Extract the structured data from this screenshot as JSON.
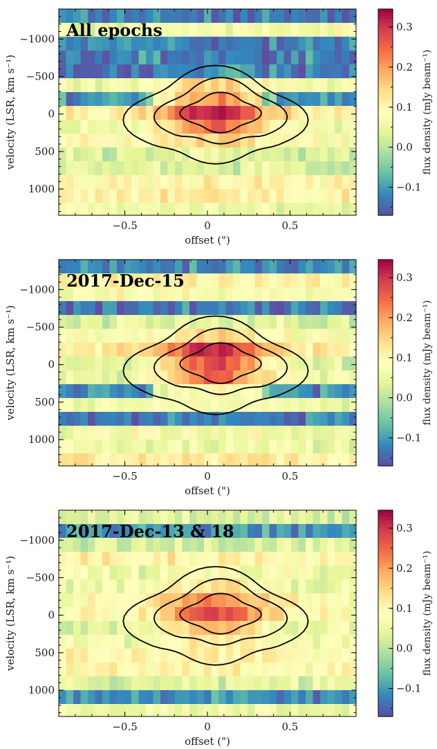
{
  "chart_data": [
    {
      "type": "heatmap",
      "annotation": "All epochs",
      "xlabel": "offset (\")",
      "ylabel": "velocity (LSR, km s⁻¹)",
      "colorbar_label": "flux density (mJy beam⁻¹)",
      "xlim": [
        -0.9,
        0.9
      ],
      "ylim": [
        1350,
        -1400
      ],
      "xticks": [
        {
          "v": -0.5,
          "t": "−0.5"
        },
        {
          "v": 0,
          "t": "0"
        },
        {
          "v": 0.5,
          "t": "0.5"
        }
      ],
      "yticks": [
        {
          "v": -1000,
          "t": "−1000"
        },
        {
          "v": -500,
          "t": "−500"
        },
        {
          "v": 0,
          "t": "0"
        },
        {
          "v": 500,
          "t": "500"
        },
        {
          "v": 1000,
          "t": "1000"
        }
      ],
      "cbar_ticks": [
        {
          "v": -0.1,
          "t": "−0.1"
        },
        {
          "v": 0.0,
          "t": "0.0"
        },
        {
          "v": 0.1,
          "t": "0.1"
        },
        {
          "v": 0.2,
          "t": "0.2"
        },
        {
          "v": 0.3,
          "t": "0.3"
        }
      ],
      "clim": [
        -0.17,
        0.345
      ],
      "colormap": "Spectral_r",
      "contour_levels": 3,
      "emission_peak_mJy": 0.33,
      "negative_trough_mJy": -0.16
    },
    {
      "type": "heatmap",
      "annotation": "2017-Dec-15",
      "xlabel": "offset (\")",
      "ylabel": "velocity (LSR, km s⁻¹)",
      "colorbar_label": "flux density (mJy beam⁻¹)",
      "xlim": [
        -0.9,
        0.9
      ],
      "ylim": [
        1350,
        -1400
      ],
      "xticks": [
        {
          "v": -0.5,
          "t": "−0.5"
        },
        {
          "v": 0,
          "t": "0"
        },
        {
          "v": 0.5,
          "t": "0.5"
        }
      ],
      "yticks": [
        {
          "v": -1000,
          "t": "−1000"
        },
        {
          "v": -500,
          "t": "−500"
        },
        {
          "v": 0,
          "t": "0"
        },
        {
          "v": 500,
          "t": "500"
        },
        {
          "v": 1000,
          "t": "1000"
        }
      ],
      "cbar_ticks": [
        {
          "v": -0.1,
          "t": "−0.1"
        },
        {
          "v": 0.0,
          "t": "0.0"
        },
        {
          "v": 0.1,
          "t": "0.1"
        },
        {
          "v": 0.2,
          "t": "0.2"
        },
        {
          "v": 0.3,
          "t": "0.3"
        }
      ],
      "clim": [
        -0.17,
        0.345
      ],
      "colormap": "Spectral_r",
      "contour_levels": 3,
      "emission_peak_mJy": 0.34,
      "negative_trough_mJy": -0.16
    },
    {
      "type": "heatmap",
      "annotation": "2017-Dec-13 & 18",
      "xlabel": "offset (\")",
      "ylabel": "velocity (LSR, km s⁻¹)",
      "colorbar_label": "flux density (mJy beam⁻¹)",
      "xlim": [
        -0.9,
        0.9
      ],
      "ylim": [
        1350,
        -1400
      ],
      "xticks": [
        {
          "v": -0.5,
          "t": "−0.5"
        },
        {
          "v": 0,
          "t": "0"
        },
        {
          "v": 0.5,
          "t": "0.5"
        }
      ],
      "yticks": [
        {
          "v": -1000,
          "t": "−1000"
        },
        {
          "v": -500,
          "t": "−500"
        },
        {
          "v": 0,
          "t": "0"
        },
        {
          "v": 500,
          "t": "500"
        },
        {
          "v": 1000,
          "t": "1000"
        }
      ],
      "cbar_ticks": [
        {
          "v": -0.1,
          "t": "−0.1"
        },
        {
          "v": 0.0,
          "t": "0.0"
        },
        {
          "v": 0.1,
          "t": "0.1"
        },
        {
          "v": 0.2,
          "t": "0.2"
        },
        {
          "v": 0.3,
          "t": "0.3"
        }
      ],
      "clim": [
        -0.17,
        0.345
      ],
      "colormap": "Spectral_r",
      "contour_levels": 3,
      "emission_peak_mJy": 0.27,
      "negative_trough_mJy": -0.15
    }
  ]
}
